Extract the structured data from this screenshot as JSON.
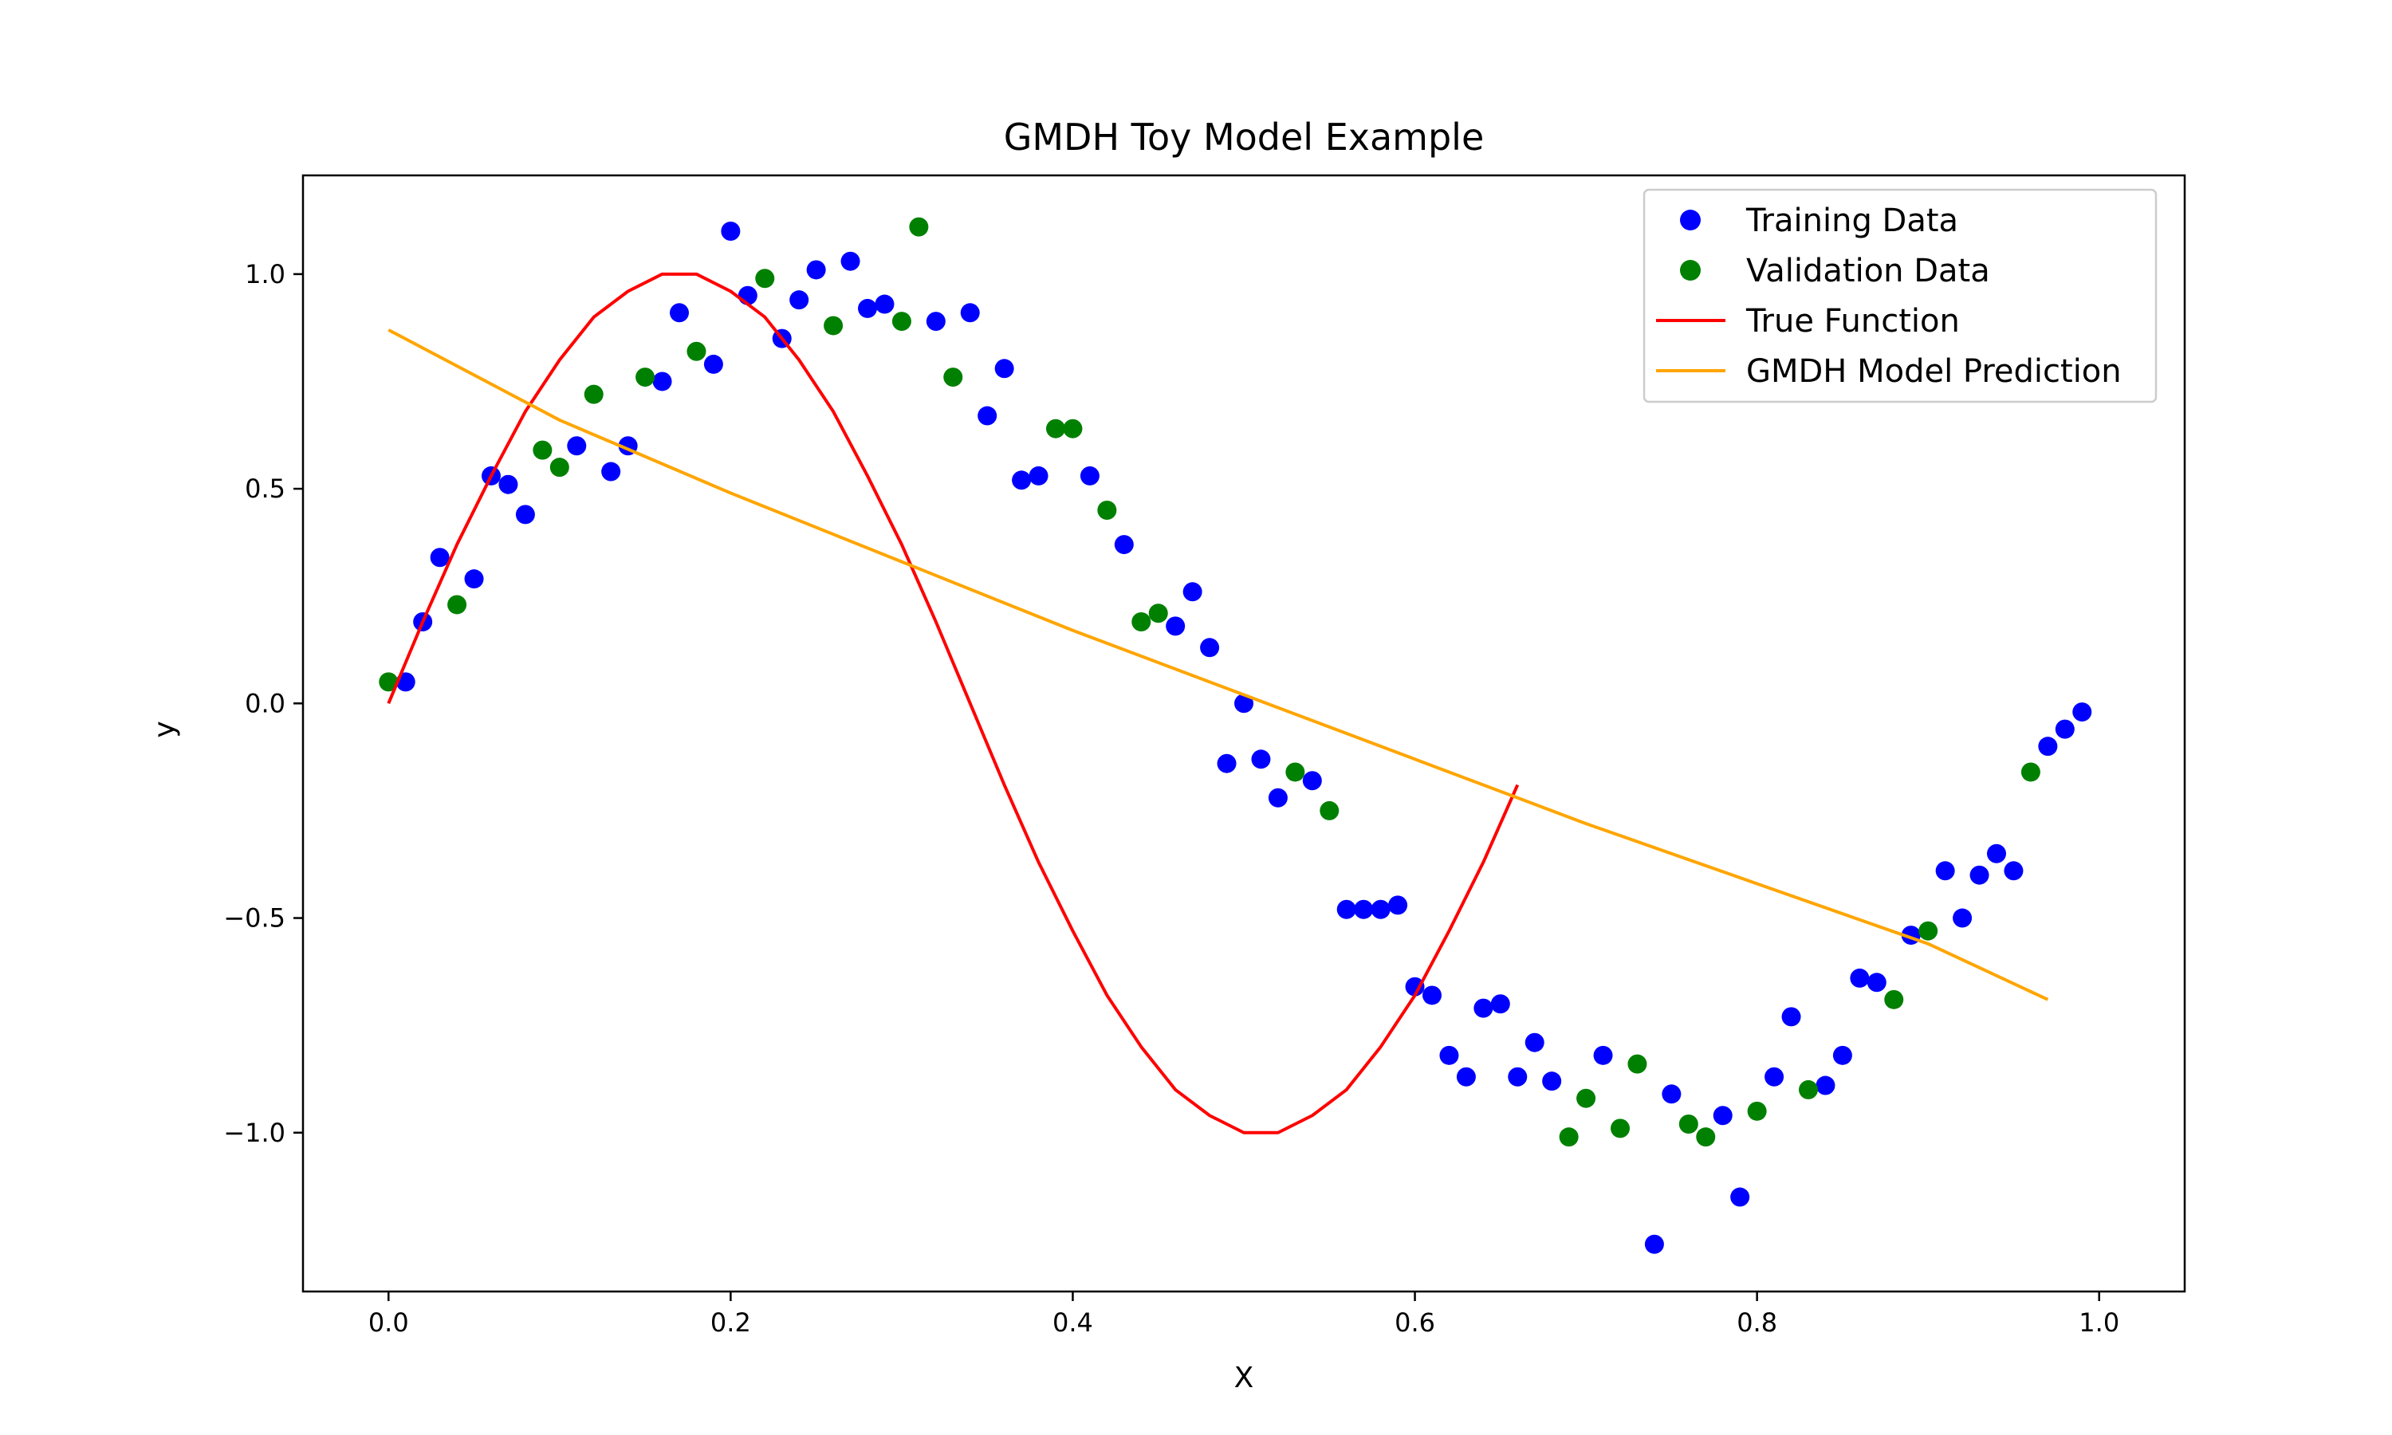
{
  "chart_data": {
    "type": "scatter",
    "title": "GMDH Toy Model Example",
    "xlabel": "X",
    "ylabel": "y",
    "xlim": [
      -0.05,
      1.05
    ],
    "ylim": [
      -1.37,
      1.23
    ],
    "xticks": [
      0.0,
      0.2,
      0.4,
      0.6,
      0.8,
      1.0
    ],
    "xtick_labels": [
      "0.0",
      "0.2",
      "0.4",
      "0.6",
      "0.8",
      "1.0"
    ],
    "yticks": [
      1.0,
      0.5,
      0.0,
      -0.5,
      -1.0
    ],
    "ytick_labels": [
      "1.0",
      "0.5",
      "0.0",
      "−0.5",
      "−1.0"
    ],
    "grid": false,
    "legend_position": "upper right",
    "series": [
      {
        "name": "Training Data",
        "kind": "scatter",
        "color": "#0000ff",
        "points": [
          [
            0.01,
            0.05
          ],
          [
            0.02,
            0.19
          ],
          [
            0.03,
            0.34
          ],
          [
            0.05,
            0.29
          ],
          [
            0.06,
            0.53
          ],
          [
            0.07,
            0.51
          ],
          [
            0.08,
            0.44
          ],
          [
            0.11,
            0.6
          ],
          [
            0.13,
            0.54
          ],
          [
            0.14,
            0.6
          ],
          [
            0.16,
            0.75
          ],
          [
            0.17,
            0.91
          ],
          [
            0.19,
            0.79
          ],
          [
            0.2,
            1.1
          ],
          [
            0.21,
            0.95
          ],
          [
            0.23,
            0.85
          ],
          [
            0.24,
            0.94
          ],
          [
            0.25,
            1.01
          ],
          [
            0.27,
            1.03
          ],
          [
            0.28,
            0.92
          ],
          [
            0.29,
            0.93
          ],
          [
            0.32,
            0.89
          ],
          [
            0.34,
            0.91
          ],
          [
            0.35,
            0.67
          ],
          [
            0.36,
            0.78
          ],
          [
            0.37,
            0.52
          ],
          [
            0.38,
            0.53
          ],
          [
            0.41,
            0.53
          ],
          [
            0.43,
            0.37
          ],
          [
            0.46,
            0.18
          ],
          [
            0.47,
            0.26
          ],
          [
            0.48,
            0.13
          ],
          [
            0.49,
            -0.14
          ],
          [
            0.5,
            0.0
          ],
          [
            0.51,
            -0.13
          ],
          [
            0.52,
            -0.22
          ],
          [
            0.54,
            -0.18
          ],
          [
            0.56,
            -0.48
          ],
          [
            0.57,
            -0.48
          ],
          [
            0.58,
            -0.48
          ],
          [
            0.59,
            -0.47
          ],
          [
            0.6,
            -0.66
          ],
          [
            0.61,
            -0.68
          ],
          [
            0.62,
            -0.82
          ],
          [
            0.63,
            -0.87
          ],
          [
            0.64,
            -0.71
          ],
          [
            0.65,
            -0.7
          ],
          [
            0.66,
            -0.87
          ],
          [
            0.67,
            -0.79
          ],
          [
            0.68,
            -0.88
          ],
          [
            0.71,
            -0.82
          ],
          [
            0.74,
            -1.26
          ],
          [
            0.75,
            -0.91
          ],
          [
            0.78,
            -0.96
          ],
          [
            0.79,
            -1.15
          ],
          [
            0.81,
            -0.87
          ],
          [
            0.82,
            -0.73
          ],
          [
            0.84,
            -0.89
          ],
          [
            0.85,
            -0.82
          ],
          [
            0.86,
            -0.64
          ],
          [
            0.87,
            -0.65
          ],
          [
            0.89,
            -0.54
          ],
          [
            0.91,
            -0.39
          ],
          [
            0.92,
            -0.5
          ],
          [
            0.93,
            -0.4
          ],
          [
            0.94,
            -0.35
          ],
          [
            0.95,
            -0.39
          ],
          [
            0.97,
            -0.1
          ],
          [
            0.98,
            -0.06
          ],
          [
            0.99,
            -0.02
          ]
        ]
      },
      {
        "name": "Validation Data",
        "kind": "scatter",
        "color": "#008000",
        "points": [
          [
            0.0,
            0.05
          ],
          [
            0.04,
            0.23
          ],
          [
            0.09,
            0.59
          ],
          [
            0.1,
            0.55
          ],
          [
            0.12,
            0.72
          ],
          [
            0.15,
            0.76
          ],
          [
            0.18,
            0.82
          ],
          [
            0.22,
            0.99
          ],
          [
            0.26,
            0.88
          ],
          [
            0.3,
            0.89
          ],
          [
            0.31,
            1.11
          ],
          [
            0.33,
            0.76
          ],
          [
            0.39,
            0.64
          ],
          [
            0.4,
            0.64
          ],
          [
            0.42,
            0.45
          ],
          [
            0.44,
            0.19
          ],
          [
            0.45,
            0.21
          ],
          [
            0.53,
            -0.16
          ],
          [
            0.55,
            -0.25
          ],
          [
            0.69,
            -1.01
          ],
          [
            0.7,
            -0.92
          ],
          [
            0.72,
            -0.99
          ],
          [
            0.73,
            -0.84
          ],
          [
            0.76,
            -0.98
          ],
          [
            0.77,
            -1.01
          ],
          [
            0.8,
            -0.95
          ],
          [
            0.83,
            -0.9
          ],
          [
            0.88,
            -0.69
          ],
          [
            0.9,
            -0.53
          ],
          [
            0.96,
            -0.16
          ]
        ]
      },
      {
        "name": "True Function",
        "kind": "line",
        "color": "#ff0000",
        "points": [
          [
            0.0,
            0.0
          ],
          [
            0.02,
            0.19
          ],
          [
            0.04,
            0.37
          ],
          [
            0.06,
            0.53
          ],
          [
            0.08,
            0.68
          ],
          [
            0.1,
            0.8
          ],
          [
            0.12,
            0.9
          ],
          [
            0.14,
            0.96
          ],
          [
            0.16,
            1.0
          ],
          [
            0.18,
            1.0
          ],
          [
            0.2,
            0.96
          ],
          [
            0.22,
            0.9
          ],
          [
            0.24,
            0.8
          ],
          [
            0.26,
            0.68
          ],
          [
            0.28,
            0.53
          ],
          [
            0.3,
            0.37
          ],
          [
            0.32,
            0.19
          ],
          [
            0.34,
            0.0
          ],
          [
            0.36,
            -0.19
          ],
          [
            0.38,
            -0.37
          ],
          [
            0.4,
            -0.53
          ],
          [
            0.42,
            -0.68
          ],
          [
            0.44,
            -0.8
          ],
          [
            0.46,
            -0.9
          ],
          [
            0.48,
            -0.96
          ],
          [
            0.5,
            -1.0
          ],
          [
            0.52,
            -1.0
          ],
          [
            0.54,
            -0.96
          ],
          [
            0.56,
            -0.9
          ],
          [
            0.58,
            -0.8
          ],
          [
            0.6,
            -0.68
          ],
          [
            0.62,
            -0.53
          ],
          [
            0.64,
            -0.37
          ],
          [
            0.66,
            -0.19
          ]
        ]
      },
      {
        "name": "GMDH Model Prediction",
        "kind": "line",
        "color": "#ffa500",
        "points": [
          [
            0.0,
            0.87
          ],
          [
            0.1,
            0.66
          ],
          [
            0.2,
            0.49
          ],
          [
            0.3,
            0.33
          ],
          [
            0.4,
            0.17
          ],
          [
            0.5,
            0.02
          ],
          [
            0.6,
            -0.13
          ],
          [
            0.7,
            -0.28
          ],
          [
            0.8,
            -0.42
          ],
          [
            0.9,
            -0.56
          ],
          [
            0.97,
            -0.69
          ]
        ]
      }
    ]
  }
}
